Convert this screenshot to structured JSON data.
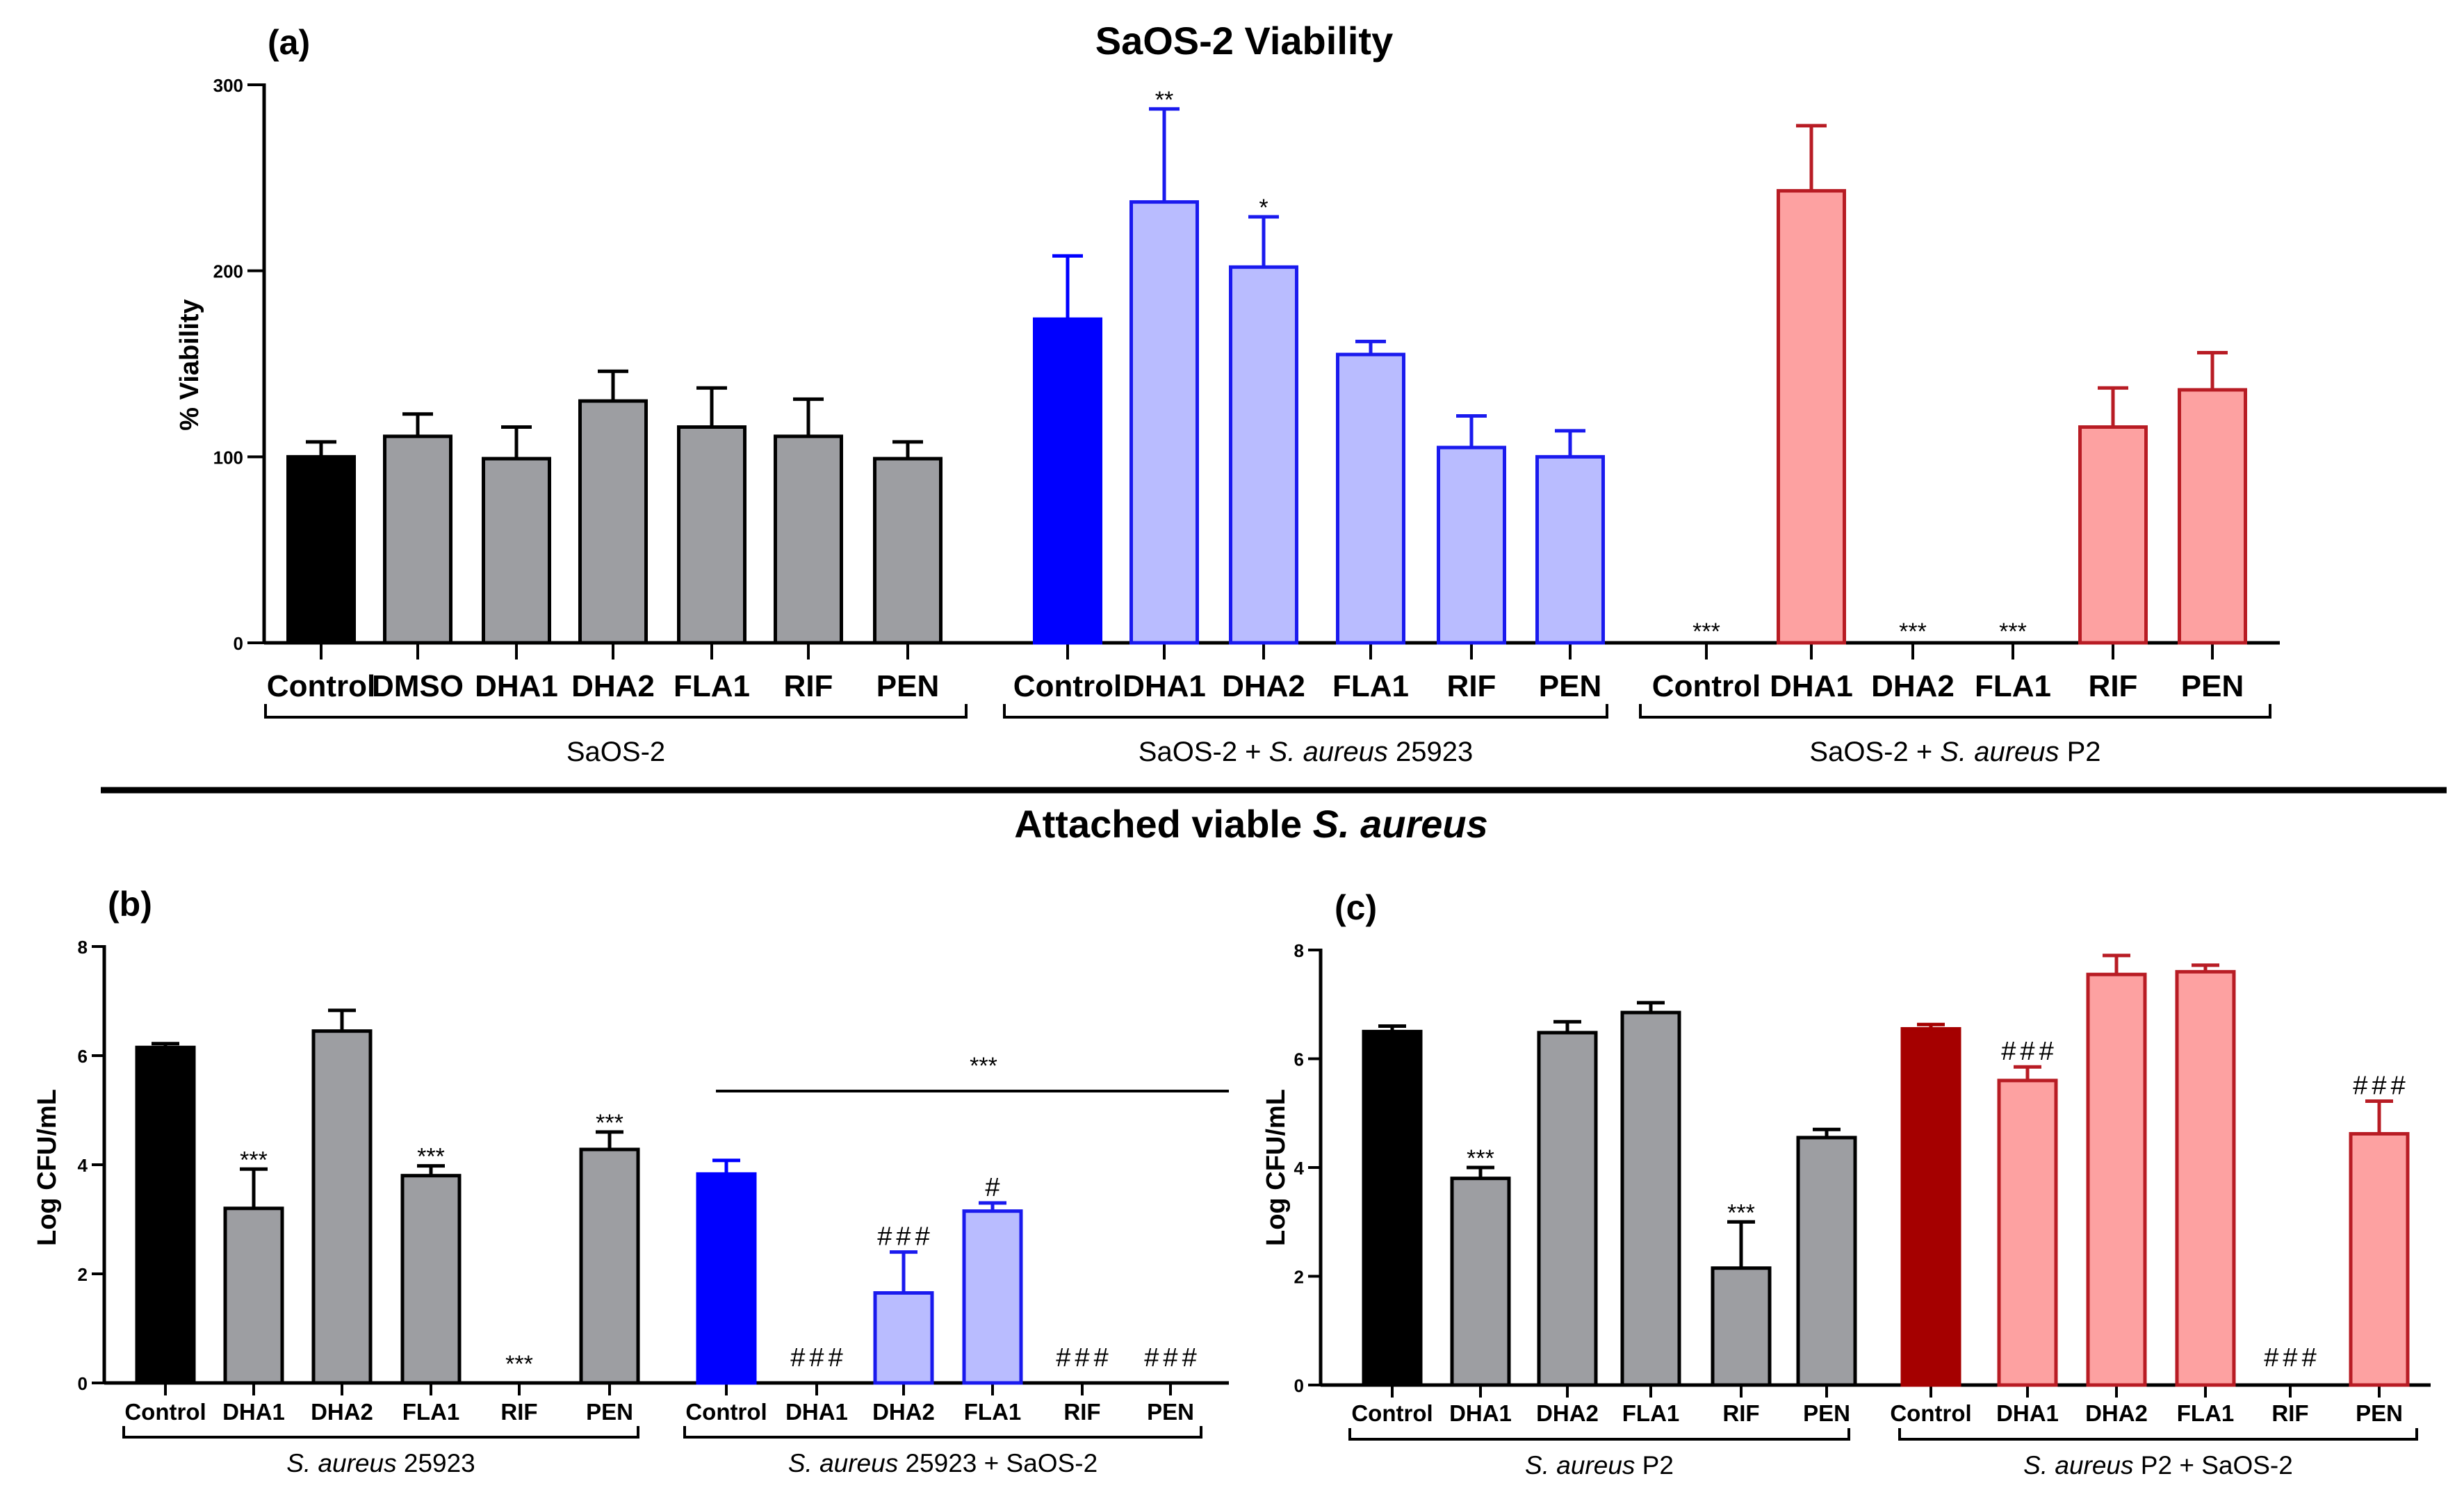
{
  "colors": {
    "black": "#000000",
    "grey": "#9d9ea2",
    "blue": "#0000ff",
    "light_blue": "#b9bcff",
    "blue_edge": "#1a1aee",
    "light_red": "#fda1a1",
    "red_edge": "#b81c24",
    "dark_red": "#a50000"
  },
  "titles": {
    "section_a": "SaOS-2 Viability",
    "section_bc_prefix": "Attached viable ",
    "section_bc_italic": "S. aureus"
  },
  "chart_data": [
    {
      "panel": "(a)",
      "type": "bar",
      "ylabel": "% Viability",
      "ylim": [
        0,
        300
      ],
      "yticks": [
        "0",
        "100",
        "200",
        "300"
      ],
      "categories": [
        "Control",
        "DMSO",
        "DHA1",
        "DHA2",
        "FLA1",
        "RIF",
        "PEN",
        "Control",
        "DHA1",
        "DHA2",
        "FLA1",
        "RIF",
        "PEN",
        "Control",
        "DHA1",
        "DHA2",
        "FLA1",
        "RIF",
        "PEN"
      ],
      "groups": [
        {
          "label": "SaOS-2",
          "italic": "",
          "suffix": "",
          "count": 7
        },
        {
          "label": "SaOS-2 + ",
          "italic": "S. aureus",
          "suffix": " 25923",
          "count": 6
        },
        {
          "label": "SaOS-2 + ",
          "italic": "S. aureus",
          "suffix": " P2",
          "count": 6
        }
      ],
      "values": [
        100,
        111,
        99,
        130,
        116,
        111,
        99,
        174,
        237,
        202,
        155,
        105,
        100,
        0,
        243,
        0,
        0,
        116,
        136
      ],
      "errors": [
        8,
        12,
        17,
        16,
        21,
        20,
        9,
        34,
        50,
        27,
        7,
        17,
        14,
        0,
        35,
        0,
        0,
        21,
        20
      ],
      "styles": [
        "black",
        "grey",
        "grey",
        "grey",
        "grey",
        "grey",
        "grey",
        "blue",
        "light_blue",
        "light_blue",
        "light_blue",
        "light_blue",
        "light_blue",
        "none",
        "light_red",
        "none",
        "none",
        "light_red",
        "light_red"
      ],
      "annotations": [
        "",
        "",
        "",
        "",
        "",
        "",
        "",
        "",
        "**",
        "*",
        "",
        "",
        "",
        "***",
        "",
        "***",
        "***",
        "",
        ""
      ]
    },
    {
      "panel": "(b)",
      "type": "bar",
      "ylabel": "Log CFU/mL",
      "ylim": [
        0,
        8
      ],
      "yticks": [
        "0",
        "2",
        "4",
        "6",
        "8"
      ],
      "categories": [
        "Control",
        "DHA1",
        "DHA2",
        "FLA1",
        "RIF",
        "PEN",
        "Control",
        "DHA1",
        "DHA2",
        "FLA1",
        "RIF",
        "PEN"
      ],
      "groups": [
        {
          "label": "",
          "italic": "S. aureus",
          "suffix": " 25923",
          "count": 6
        },
        {
          "label": "",
          "italic": "S. aureus",
          "suffix": " 25923 + SaOS-2",
          "count": 6
        }
      ],
      "values": [
        6.15,
        3.2,
        6.45,
        3.8,
        0,
        4.28,
        3.83,
        0,
        1.65,
        3.15,
        0,
        0
      ],
      "errors": [
        0.07,
        0.72,
        0.38,
        0.18,
        0,
        0.32,
        0.25,
        0,
        0.75,
        0.15,
        0,
        0
      ],
      "styles": [
        "black",
        "grey",
        "grey",
        "grey",
        "none",
        "grey",
        "blue",
        "none",
        "light_blue",
        "light_blue",
        "none",
        "none"
      ],
      "annotations": [
        "",
        "***",
        "",
        "***",
        "***",
        "***",
        "",
        "###",
        "###",
        "#",
        "###",
        "###"
      ],
      "bracket_label": "***"
    },
    {
      "panel": "(c)",
      "type": "bar",
      "ylabel": "Log CFU/mL",
      "ylim": [
        0,
        8
      ],
      "yticks": [
        "0",
        "2",
        "4",
        "6",
        "8"
      ],
      "categories": [
        "Control",
        "DHA1",
        "DHA2",
        "FLA1",
        "RIF",
        "PEN",
        "Control",
        "DHA1",
        "DHA2",
        "FLA1",
        "RIF",
        "PEN"
      ],
      "groups": [
        {
          "label": "",
          "italic": "S. aureus",
          "suffix": " P2",
          "count": 6
        },
        {
          "label": "",
          "italic": "S. aureus",
          "suffix": " P2 + SaOS-2",
          "count": 6
        }
      ],
      "values": [
        6.5,
        3.8,
        6.48,
        6.85,
        2.15,
        4.55,
        6.55,
        5.6,
        7.55,
        7.6,
        0,
        4.62
      ],
      "errors": [
        0.1,
        0.2,
        0.2,
        0.18,
        0.85,
        0.15,
        0.08,
        0.25,
        0.35,
        0.12,
        0,
        0.6
      ],
      "styles": [
        "black",
        "grey",
        "grey",
        "grey",
        "grey",
        "grey",
        "dark_red",
        "light_red",
        "light_red",
        "light_red",
        "none",
        "light_red"
      ],
      "annotations": [
        "",
        "***",
        "",
        "",
        "***",
        "",
        "",
        "###",
        "",
        "",
        "###",
        "###"
      ]
    }
  ]
}
